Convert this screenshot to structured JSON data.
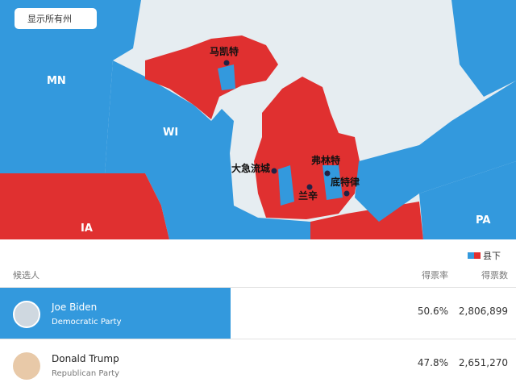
{
  "map": {
    "button": "显示所有州",
    "states": [
      "MN",
      "WI",
      "IA",
      "PA"
    ],
    "cities": [
      "马凯特",
      "大急流城",
      "弗林特",
      "底特律",
      "兰辛"
    ],
    "legend": "县下"
  },
  "table": {
    "headers": [
      "候选人",
      "得票率",
      "得票数"
    ],
    "rows": [
      [
        "Joe Biden",
        "Democratic Party",
        "50.6%",
        "2,806,899"
      ],
      [
        "Donald Trump",
        "Republican Party",
        "47.8%",
        "2,651,270"
      ]
    ]
  }
}
